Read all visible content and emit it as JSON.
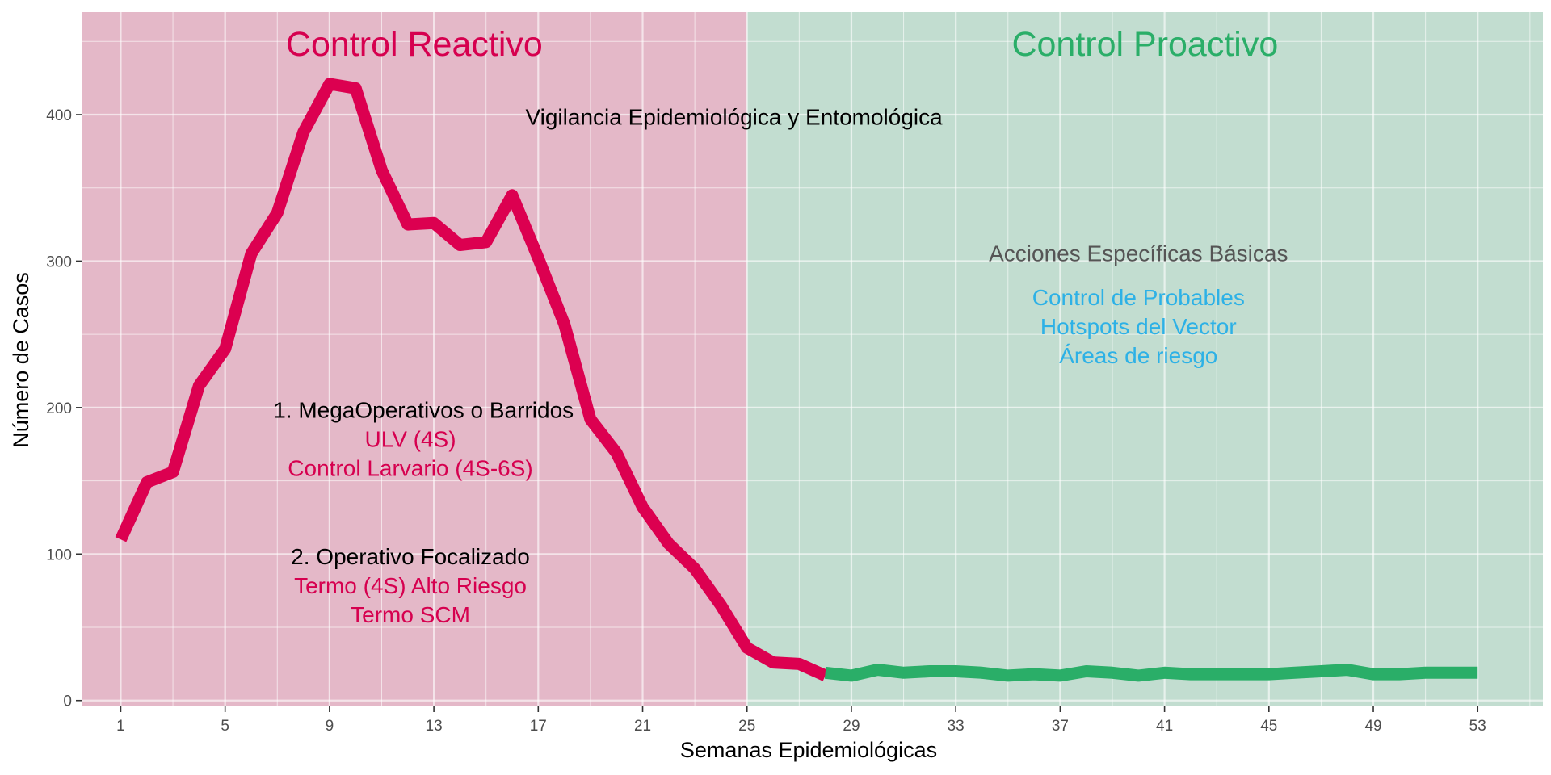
{
  "chart_data": {
    "type": "line",
    "xlabel": "Semanas Epidemiológicas",
    "ylabel": "Número de Casos",
    "xlim": [
      -0.5,
      55.5
    ],
    "ylim": [
      -4,
      470
    ],
    "x_ticks": [
      1,
      5,
      9,
      13,
      17,
      21,
      25,
      29,
      33,
      37,
      41,
      45,
      49,
      53
    ],
    "y_ticks": [
      0,
      100,
      200,
      300,
      400
    ],
    "grid": true,
    "legend": "none",
    "regions": [
      {
        "label": "Control Reactivo",
        "x_start": -0.5,
        "x_end": 25,
        "fill": "#E4B8C8",
        "text_color": "#D6004F"
      },
      {
        "label": "Control Proactivo",
        "x_start": 25,
        "x_end": 55.5,
        "fill": "#C2DDD0",
        "text_color": "#2AAE68"
      }
    ],
    "series": [
      {
        "color": "#DC0050",
        "x": [
          1,
          2,
          3,
          4,
          5,
          6,
          7,
          8,
          9,
          10,
          11,
          12,
          13,
          14,
          15,
          16,
          17,
          18,
          19,
          20,
          21,
          22,
          23,
          24,
          25,
          26,
          27,
          28
        ],
        "y": [
          110,
          149,
          156,
          215,
          240,
          305,
          333,
          388,
          421,
          418,
          362,
          325,
          326,
          311,
          313,
          345,
          302,
          257,
          192,
          169,
          132,
          107,
          90,
          65,
          36,
          26,
          25,
          17
        ]
      },
      {
        "color": "#2AAE68",
        "x": [
          28,
          29,
          30,
          31,
          32,
          33,
          34,
          35,
          36,
          37,
          38,
          39,
          40,
          41,
          42,
          43,
          44,
          45,
          46,
          47,
          48,
          49,
          50,
          51,
          52,
          53
        ],
        "y": [
          19,
          17,
          21,
          19,
          20,
          20,
          19,
          17,
          18,
          17,
          20,
          19,
          17,
          19,
          18,
          18,
          18,
          18,
          19,
          20,
          21,
          18,
          18,
          19,
          19,
          19
        ]
      }
    ],
    "annotations": [
      {
        "id": "vigilancia",
        "x": 24.5,
        "y": 398,
        "lines": [
          {
            "text": "Vigilancia Epidemiológica y Entomológica",
            "color": "#000000"
          }
        ]
      },
      {
        "id": "acciones",
        "x": 40,
        "y": 305,
        "lines": [
          {
            "text": "Acciones Específicas Básicas",
            "color": "#555555"
          }
        ]
      },
      {
        "id": "hotspots",
        "x": 40,
        "y": 275,
        "lines": [
          {
            "text": "Control de Probables",
            "color": "#2DB1E6"
          },
          {
            "text": "Hotspots del Vector",
            "color": "#2DB1E6"
          },
          {
            "text": "Áreas de riesgo",
            "color": "#2DB1E6"
          }
        ]
      },
      {
        "id": "megaoperativos",
        "x": 12.1,
        "y": 198,
        "lines": [
          {
            "text": "1. MegaOperativos o Barridos",
            "color": "#000000",
            "x": 12.6
          },
          {
            "text": "ULV (4S)",
            "color": "#D6004F"
          },
          {
            "text": "Control Larvario (4S-6S)",
            "color": "#D6004F"
          }
        ]
      },
      {
        "id": "focalizado",
        "x": 12.1,
        "y": 98,
        "lines": [
          {
            "text": "2. Operativo Focalizado",
            "color": "#000000"
          },
          {
            "text": "Termo (4S) Alto Riesgo",
            "color": "#D6004F"
          },
          {
            "text": "Termo SCM",
            "color": "#D6004F"
          }
        ]
      }
    ]
  }
}
